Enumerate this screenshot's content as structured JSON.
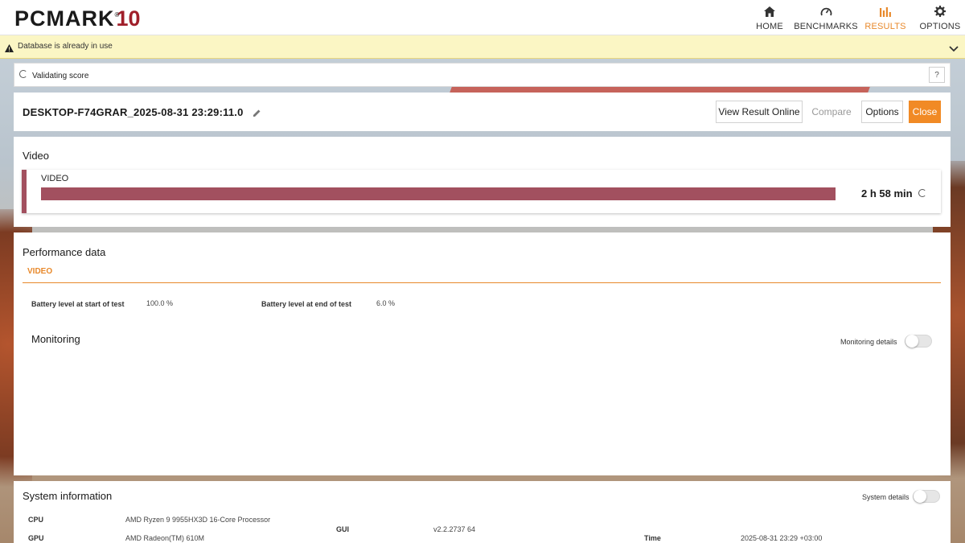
{
  "app": {
    "logo_text": "PCMARK",
    "logo_number": "10",
    "logo_reg": "®"
  },
  "nav": {
    "home": "HOME",
    "benchmarks": "BENCHMARKS",
    "results": "RESULTS",
    "options": "OPTIONS",
    "active": "RESULTS",
    "accent_color": "#e8892b"
  },
  "warning": {
    "text": "Database is already in use",
    "icon": "warning-icon"
  },
  "validating": {
    "text": "Validating score",
    "help_label": "?"
  },
  "result": {
    "title": "DESKTOP-F74GRAR_2025-08-31 23:29:11.0",
    "buttons": {
      "view_online": "View Result Online",
      "compare": "Compare",
      "options": "Options",
      "close": "Close"
    },
    "close_color": "#f18a25"
  },
  "video_section": {
    "title": "Video",
    "card_label": "VIDEO",
    "score": "2 h 58 min",
    "bar_color": "#a2505f",
    "bar_fill_fraction": 1.0
  },
  "performance": {
    "title": "Performance data",
    "tab": "VIDEO",
    "battery_start_label": "Battery level at start of test",
    "battery_start_value": "100.0 %",
    "battery_end_label": "Battery level at end of test",
    "battery_end_value": "6.0 %",
    "monitoring_title": "Monitoring",
    "monitoring_toggle_label": "Monitoring details",
    "monitoring_toggle_on": false
  },
  "system_info": {
    "title": "System information",
    "toggle_label": "System details",
    "toggle_on": false,
    "cpu_label": "CPU",
    "cpu_value": "AMD Ryzen 9 9955HX3D 16-Core Processor",
    "gpu_label": "GPU",
    "gpu_value": "AMD Radeon(TM) 610M",
    "gui_label": "GUI",
    "gui_value": "v2.2.2737 64",
    "time_label": "Time",
    "time_value": "2025-08-31 23:29 +03:00"
  }
}
